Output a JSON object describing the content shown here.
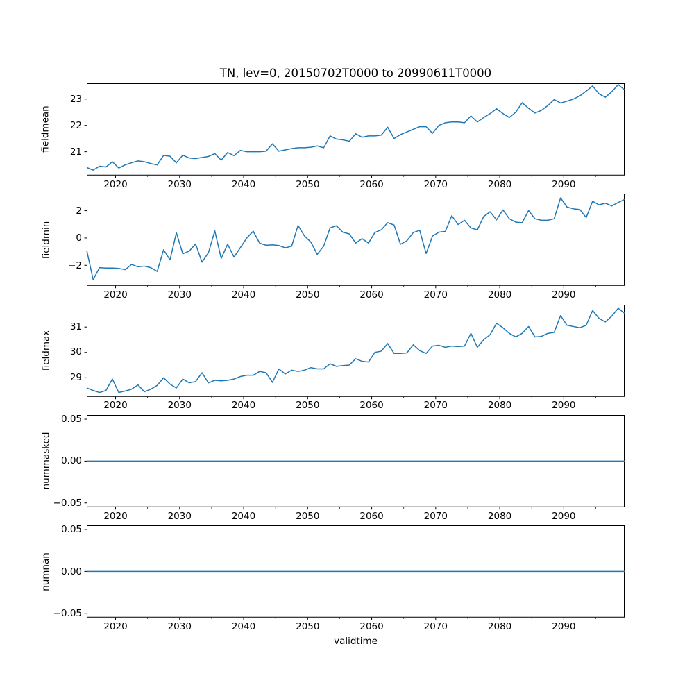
{
  "figure": {
    "title": "TN, lev=0, 20150702T0000 to 20990611T0000",
    "xlabel": "validtime",
    "line_color": "#1f77b4",
    "axis_color": "#000000",
    "background_color": "#ffffff"
  },
  "x_axis": {
    "start": 2015.5,
    "step": 1,
    "count": 85,
    "xlim": [
      2015.5,
      2099.5
    ],
    "ticks": [
      {
        "value": 2020,
        "label": "2020"
      },
      {
        "value": 2030,
        "label": "2030"
      },
      {
        "value": 2040,
        "label": "2040"
      },
      {
        "value": 2050,
        "label": "2050"
      },
      {
        "value": 2060,
        "label": "2060"
      },
      {
        "value": 2070,
        "label": "2070"
      },
      {
        "value": 2080,
        "label": "2080"
      },
      {
        "value": 2090,
        "label": "2090"
      }
    ],
    "minor_ticks": [
      2025,
      2035,
      2045,
      2055,
      2065,
      2075,
      2085,
      2095
    ]
  },
  "chart_data": [
    {
      "type": "line",
      "name": "fieldmean",
      "ylabel": "fieldmean",
      "ylim": [
        20.1,
        23.6
      ],
      "yticks": [
        {
          "value": 21,
          "label": "21"
        },
        {
          "value": 22,
          "label": "22"
        },
        {
          "value": 23,
          "label": "23"
        }
      ],
      "values": [
        20.4,
        20.3,
        20.45,
        20.42,
        20.62,
        20.38,
        20.5,
        20.58,
        20.65,
        20.62,
        20.55,
        20.5,
        20.86,
        20.83,
        20.58,
        20.87,
        20.76,
        20.74,
        20.78,
        20.82,
        20.93,
        20.68,
        20.97,
        20.85,
        21.05,
        21.0,
        21.0,
        21.0,
        21.02,
        21.3,
        21.02,
        21.07,
        21.12,
        21.15,
        21.15,
        21.17,
        21.22,
        21.15,
        21.6,
        21.48,
        21.45,
        21.4,
        21.68,
        21.55,
        21.6,
        21.6,
        21.63,
        21.93,
        21.5,
        21.65,
        21.75,
        21.85,
        21.95,
        21.95,
        21.7,
        22.0,
        22.1,
        22.13,
        22.13,
        22.1,
        22.36,
        22.13,
        22.3,
        22.45,
        22.63,
        22.45,
        22.3,
        22.5,
        22.86,
        22.65,
        22.47,
        22.57,
        22.75,
        22.98,
        22.85,
        22.92,
        23.0,
        23.12,
        23.3,
        23.5,
        23.2,
        23.07,
        23.28,
        23.55,
        23.35
      ]
    },
    {
      "type": "line",
      "name": "fieldmin",
      "ylabel": "fieldmin",
      "ylim": [
        -3.5,
        3.25
      ],
      "yticks": [
        {
          "value": -2,
          "label": "−2"
        },
        {
          "value": 0,
          "label": "0"
        },
        {
          "value": 2,
          "label": "2"
        }
      ],
      "values": [
        -0.91,
        -3.05,
        -2.17,
        -2.2,
        -2.2,
        -2.23,
        -2.32,
        -1.94,
        -2.11,
        -2.06,
        -2.17,
        -2.45,
        -0.86,
        -1.6,
        0.38,
        -1.16,
        -0.96,
        -0.44,
        -1.77,
        -1.08,
        0.52,
        -1.5,
        -0.45,
        -1.4,
        -0.7,
        0.0,
        0.5,
        -0.38,
        -0.53,
        -0.5,
        -0.55,
        -0.72,
        -0.6,
        0.92,
        0.15,
        -0.3,
        -1.2,
        -0.6,
        0.74,
        0.9,
        0.42,
        0.3,
        -0.37,
        -0.05,
        -0.37,
        0.4,
        0.6,
        1.12,
        0.95,
        -0.46,
        -0.2,
        0.4,
        0.56,
        -1.14,
        0.14,
        0.43,
        0.48,
        1.63,
        0.99,
        1.3,
        0.73,
        0.6,
        1.58,
        1.92,
        1.33,
        2.06,
        1.41,
        1.16,
        1.12,
        2.01,
        1.41,
        1.3,
        1.3,
        1.41,
        2.94,
        2.27,
        2.14,
        2.09,
        1.5,
        2.69,
        2.43,
        2.55,
        2.35,
        2.6,
        2.83
      ]
    },
    {
      "type": "line",
      "name": "fieldmax",
      "ylabel": "fieldmax",
      "ylim": [
        28.25,
        31.88
      ],
      "yticks": [
        {
          "value": 29,
          "label": "29"
        },
        {
          "value": 30,
          "label": "30"
        },
        {
          "value": 31,
          "label": "31"
        }
      ],
      "values": [
        28.6,
        28.5,
        28.42,
        28.5,
        28.95,
        28.42,
        28.48,
        28.55,
        28.72,
        28.45,
        28.55,
        28.7,
        29.0,
        28.75,
        28.6,
        28.95,
        28.8,
        28.85,
        29.2,
        28.8,
        28.9,
        28.88,
        28.9,
        28.95,
        29.05,
        29.1,
        29.1,
        29.25,
        29.2,
        28.82,
        29.35,
        29.15,
        29.3,
        29.25,
        29.3,
        29.4,
        29.35,
        29.35,
        29.55,
        29.45,
        29.48,
        29.5,
        29.75,
        29.65,
        29.62,
        30.0,
        30.05,
        30.35,
        29.96,
        29.96,
        29.98,
        30.3,
        30.07,
        29.96,
        30.25,
        30.28,
        30.2,
        30.25,
        30.23,
        30.25,
        30.75,
        30.2,
        30.5,
        30.7,
        31.15,
        30.97,
        30.75,
        30.61,
        30.75,
        31.02,
        30.61,
        30.63,
        30.75,
        30.79,
        31.45,
        31.07,
        31.02,
        30.97,
        31.07,
        31.65,
        31.34,
        31.2,
        31.43,
        31.74,
        31.54
      ]
    },
    {
      "type": "line",
      "name": "nummasked",
      "ylabel": "nummasked",
      "ylim": [
        -0.055,
        0.055
      ],
      "yticks": [
        {
          "value": -0.05,
          "label": "−0.05"
        },
        {
          "value": 0,
          "label": "0.00"
        },
        {
          "value": 0.05,
          "label": "0.05"
        }
      ],
      "values": [
        0,
        0,
        0,
        0,
        0,
        0,
        0,
        0,
        0,
        0,
        0,
        0,
        0,
        0,
        0,
        0,
        0,
        0,
        0,
        0,
        0,
        0,
        0,
        0,
        0,
        0,
        0,
        0,
        0,
        0,
        0,
        0,
        0,
        0,
        0,
        0,
        0,
        0,
        0,
        0,
        0,
        0,
        0,
        0,
        0,
        0,
        0,
        0,
        0,
        0,
        0,
        0,
        0,
        0,
        0,
        0,
        0,
        0,
        0,
        0,
        0,
        0,
        0,
        0,
        0,
        0,
        0,
        0,
        0,
        0,
        0,
        0,
        0,
        0,
        0,
        0,
        0,
        0,
        0,
        0,
        0,
        0,
        0,
        0,
        0
      ]
    },
    {
      "type": "line",
      "name": "numnan",
      "ylabel": "numnan",
      "ylim": [
        -0.055,
        0.055
      ],
      "yticks": [
        {
          "value": -0.05,
          "label": "−0.05"
        },
        {
          "value": 0,
          "label": "0.00"
        },
        {
          "value": 0.05,
          "label": "0.05"
        }
      ],
      "values": [
        0,
        0,
        0,
        0,
        0,
        0,
        0,
        0,
        0,
        0,
        0,
        0,
        0,
        0,
        0,
        0,
        0,
        0,
        0,
        0,
        0,
        0,
        0,
        0,
        0,
        0,
        0,
        0,
        0,
        0,
        0,
        0,
        0,
        0,
        0,
        0,
        0,
        0,
        0,
        0,
        0,
        0,
        0,
        0,
        0,
        0,
        0,
        0,
        0,
        0,
        0,
        0,
        0,
        0,
        0,
        0,
        0,
        0,
        0,
        0,
        0,
        0,
        0,
        0,
        0,
        0,
        0,
        0,
        0,
        0,
        0,
        0,
        0,
        0,
        0,
        0,
        0,
        0,
        0,
        0,
        0,
        0,
        0,
        0,
        0
      ]
    }
  ]
}
